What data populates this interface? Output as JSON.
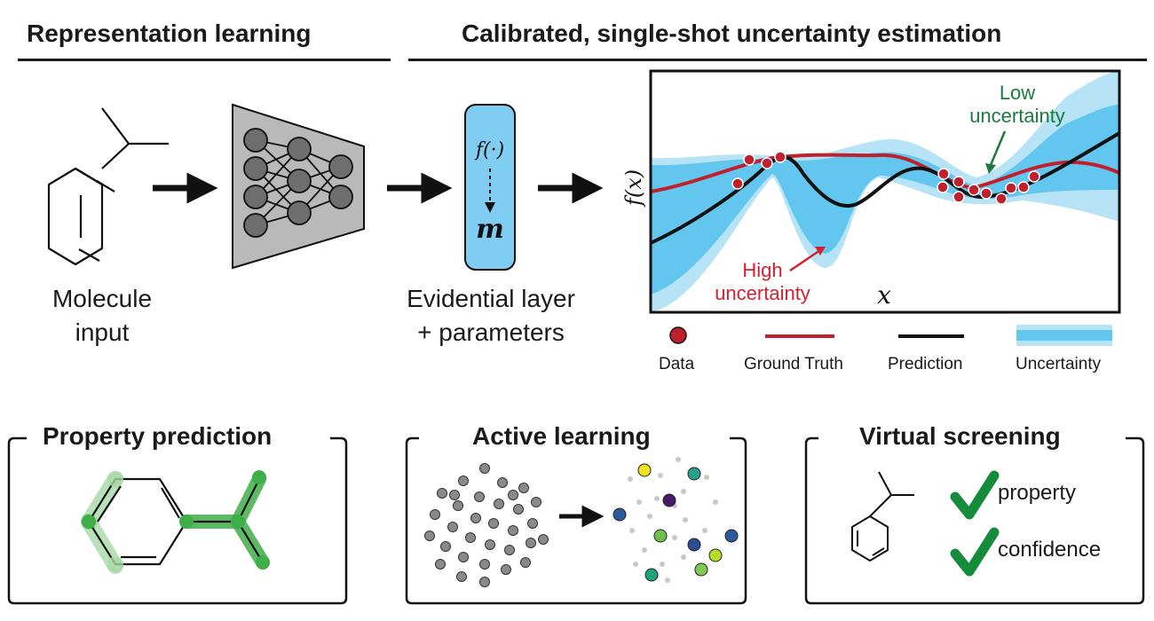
{
  "headers": {
    "left": "Representation learning",
    "right": "Calibrated, single-shot uncertainty estimation"
  },
  "molecule_label": [
    "Molecule",
    "input"
  ],
  "evidential": {
    "func": "f(·)",
    "param": "m",
    "label": [
      "Evidential layer",
      "+ parameters"
    ]
  },
  "plot": {
    "ylabel": "f(x)",
    "xlabel": "x",
    "low_label": [
      "Low",
      "uncertainty"
    ],
    "high_label": [
      "High",
      "uncertainty"
    ]
  },
  "legend": {
    "data": "Data",
    "ground_truth": "Ground Truth",
    "prediction": "Prediction",
    "uncertainty": "Uncertainty"
  },
  "panels": {
    "property": "Property prediction",
    "active": "Active learning",
    "virtual": "Virtual screening",
    "check1": "property",
    "check2": "confidence"
  },
  "colors": {
    "ground_truth": "#c0202e",
    "prediction": "#111111",
    "uncertainty_inner": "#62c6ee",
    "uncertainty_outer": "#b6e3f6",
    "check_green": "#148c3a",
    "low_green": "#1b7a3e",
    "high_red": "#d4202e"
  }
}
